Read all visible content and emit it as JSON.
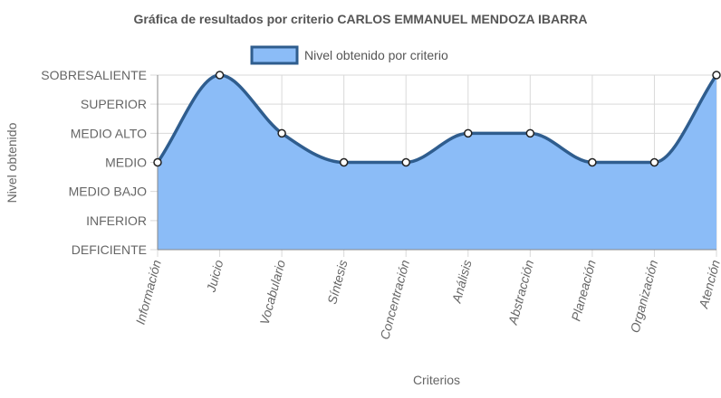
{
  "chart_data": {
    "type": "area",
    "title": "Gráfica de resultados por criterio CARLOS EMMANUEL MENDOZA IBARRA",
    "xlabel": "Criterios",
    "ylabel": "Nivel obtenido",
    "categories": [
      "Información",
      "Juicio",
      "Vocabulario",
      "Síntesis",
      "Concentración",
      "Análisis",
      "Abstracción",
      "Planeación",
      "Organización",
      "Atención"
    ],
    "y_levels": [
      "DEFICIENTE",
      "INFERIOR",
      "MEDIO BAJO",
      "MEDIO",
      "MEDIO ALTO",
      "SUPERIOR",
      "SOBRESALIENTE"
    ],
    "ylim": [
      0,
      6
    ],
    "series": [
      {
        "name": "Nivel obtenido por criterio",
        "values": [
          3,
          6,
          4,
          3,
          3,
          4,
          4,
          3,
          3,
          6
        ]
      }
    ],
    "legend_position": "top",
    "grid": true,
    "colors": {
      "fill": "#8bbcf7",
      "line": "#2f5d8e",
      "grid": "#d9d9d9",
      "axis": "#888888",
      "text": "#666666",
      "title": "#555555",
      "point_fill": "#ffffff",
      "point_stroke": "#222222"
    }
  }
}
